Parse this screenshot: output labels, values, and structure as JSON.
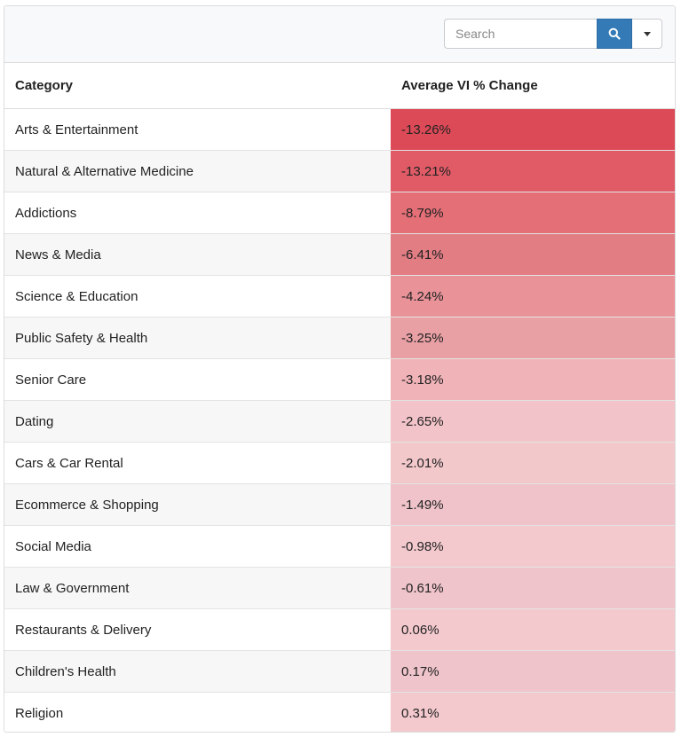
{
  "search": {
    "placeholder": "Search"
  },
  "icons": {
    "search_button": "search-icon",
    "dropdown": "caret-down-icon"
  },
  "colors": {
    "accent": "#337ab7",
    "heat_strong": "#dc4a57",
    "heat_light": "#f3c9cd"
  },
  "table": {
    "headers": {
      "category": "Category",
      "change": "Average VI % Change"
    },
    "rows": [
      {
        "category": "Arts & Entertainment",
        "change": "-13.26%",
        "value": -13.26,
        "color": "#dd4a57"
      },
      {
        "category": "Natural & Alternative Medicine",
        "change": "-13.21%",
        "value": -13.21,
        "color": "#e05b66"
      },
      {
        "category": "Addictions",
        "change": "-8.79%",
        "value": -8.79,
        "color": "#e46f77"
      },
      {
        "category": "News & Media",
        "change": "-6.41%",
        "value": -6.41,
        "color": "#e27d84"
      },
      {
        "category": "Science & Education",
        "change": "-4.24%",
        "value": -4.24,
        "color": "#e99298"
      },
      {
        "category": "Public Safety & Health",
        "change": "-3.25%",
        "value": -3.25,
        "color": "#e9a0a5"
      },
      {
        "category": "Senior Care",
        "change": "-3.18%",
        "value": -3.18,
        "color": "#f0b3b8"
      },
      {
        "category": "Dating",
        "change": "-2.65%",
        "value": -2.65,
        "color": "#f2c3c8"
      },
      {
        "category": "Cars & Car Rental",
        "change": "-2.01%",
        "value": -2.01,
        "color": "#f3c8cb"
      },
      {
        "category": "Ecommerce & Shopping",
        "change": "-1.49%",
        "value": -1.49,
        "color": "#efc3c9"
      },
      {
        "category": "Social Media",
        "change": "-0.98%",
        "value": -0.98,
        "color": "#f3c9cd"
      },
      {
        "category": "Law & Government",
        "change": "-0.61%",
        "value": -0.61,
        "color": "#efc4ca"
      },
      {
        "category": "Restaurants & Delivery",
        "change": "0.06%",
        "value": 0.06,
        "color": "#f3c9cd"
      },
      {
        "category": "Children's Health",
        "change": "0.17%",
        "value": 0.17,
        "color": "#efc4ca"
      },
      {
        "category": "Religion",
        "change": "0.31%",
        "value": 0.31,
        "color": "#f3c9cd"
      }
    ]
  }
}
